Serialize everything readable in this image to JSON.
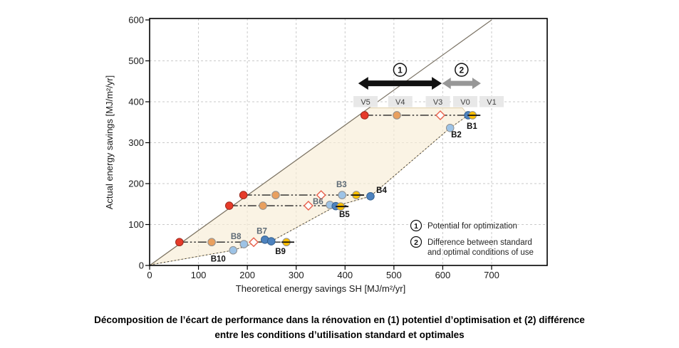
{
  "caption": {
    "lines": [
      "Décomposition de l’écart de performance dans la rénovation en (1) potentiel d’optimisation et (2) différence",
      "entre les conditions d’utilisation standard et optimales"
    ]
  },
  "chart_data": {
    "type": "scatter",
    "xlabel": "Theoretical energy savings SH [MJ/m²/yr]",
    "ylabel": "Actual energy savings [MJ/m²/yr]",
    "xlim": [
      0,
      700
    ],
    "ylim": [
      0,
      600
    ],
    "xticks": [
      0,
      100,
      200,
      300,
      400,
      500,
      600,
      700
    ],
    "yticks": [
      0,
      100,
      200,
      300,
      400,
      500,
      600
    ],
    "grid": true,
    "identity_line": {
      "from": [
        0,
        0
      ],
      "to": [
        700,
        600
      ]
    },
    "optimization_band": [
      [
        3,
        2
      ],
      [
        449,
        385
      ],
      [
        640,
        385
      ],
      [
        652,
        367
      ],
      [
        615,
        336
      ],
      [
        452,
        169
      ],
      [
        381,
        145
      ],
      [
        249,
        59
      ],
      [
        236,
        63
      ],
      [
        171,
        37
      ]
    ],
    "performance_path": [
      [
        652,
        367
      ],
      [
        615,
        336
      ],
      [
        452,
        169
      ],
      [
        381,
        145
      ],
      [
        249,
        59
      ],
      [
        236,
        63
      ],
      [
        171,
        37
      ],
      [
        3,
        2
      ]
    ],
    "series_rows": [
      {
        "y": 367,
        "line": [
          440,
          674
        ],
        "points": [
          [
            "red",
            440
          ],
          [
            "orange",
            506
          ],
          [
            "diamond",
            595
          ],
          [
            "blue",
            652
          ],
          [
            "yellow",
            661
          ]
        ]
      },
      {
        "y": 172,
        "line": [
          192,
          437
        ],
        "points": [
          [
            "red",
            192
          ],
          [
            "orange",
            258
          ],
          [
            "diamond",
            351
          ],
          [
            "lightblue",
            394
          ],
          [
            "yellow",
            423
          ]
        ]
      },
      {
        "y": 146,
        "line": [
          163,
          403
        ],
        "points": [
          [
            "red",
            163
          ],
          [
            "orange",
            232
          ],
          [
            "diamond",
            325
          ],
          [
            "lightblue",
            369,
            148
          ],
          [
            "blue",
            381,
            145
          ],
          [
            "yellow",
            391,
            144
          ]
        ]
      },
      {
        "y": 57,
        "line": [
          61,
          291
        ],
        "points": [
          [
            "red",
            61
          ],
          [
            "orange",
            127
          ],
          [
            "diamond",
            213
          ],
          [
            "blue",
            236,
            63
          ],
          [
            "blue",
            249,
            59
          ],
          [
            "yellow",
            280
          ]
        ]
      }
    ],
    "scatter_points": [
      [
        "lightblue",
        615,
        336
      ],
      [
        "blue",
        452,
        169
      ],
      [
        "lightblue",
        193,
        52
      ],
      [
        "lightblue",
        171,
        37
      ]
    ],
    "building_labels": [
      {
        "text": "B1",
        "x": 649,
        "y": 334,
        "shade": "black"
      },
      {
        "text": "B2",
        "x": 617,
        "y": 313,
        "shade": "black"
      },
      {
        "text": "B3",
        "x": 382,
        "y": 191,
        "shade": "gray"
      },
      {
        "text": "B4",
        "x": 464,
        "y": 177,
        "shade": "black"
      },
      {
        "text": "B5",
        "x": 388,
        "y": 118,
        "shade": "black"
      },
      {
        "text": "B6",
        "x": 334,
        "y": 150,
        "shade": "gray"
      },
      {
        "text": "B7",
        "x": 219,
        "y": 77,
        "shade": "gray"
      },
      {
        "text": "B8",
        "x": 166,
        "y": 64,
        "shade": "gray"
      },
      {
        "text": "B9",
        "x": 257,
        "y": 28,
        "shade": "black"
      },
      {
        "text": "B10",
        "x": 125,
        "y": 10,
        "shade": "black"
      }
    ],
    "version_labels": [
      {
        "text": "V5",
        "x": 442
      },
      {
        "text": "V4",
        "x": 513
      },
      {
        "text": "V3",
        "x": 590
      },
      {
        "text": "V0",
        "x": 646
      },
      {
        "text": "V1",
        "x": 700
      }
    ],
    "version_labels_y": 400,
    "arrows": [
      {
        "num": "1",
        "x1": 427,
        "x2": 598,
        "y": 445,
        "color": "#111111"
      },
      {
        "num": "2",
        "x1": 599,
        "x2": 678,
        "y": 445,
        "color": "#979797"
      }
    ],
    "legend": [
      {
        "num": "1",
        "lines": [
          "Potential for optimization"
        ]
      },
      {
        "num": "2",
        "lines": [
          "Difference between standard",
          "and optimal conditions of use"
        ]
      }
    ],
    "colors": {
      "red": "#e63b2a",
      "red_stroke": "#9c2a1e",
      "orange": "#e9a05f",
      "orange_stroke": "#8f8f8f",
      "yellow": "#ffc000",
      "yellow_stroke": "#8f8f8f",
      "blue": "#4d82be",
      "blue_stroke": "#35618f",
      "lightblue": "#9dc3e6",
      "lightblue_stroke": "#8f8f8f",
      "diamond_stroke": "#e8604c",
      "band_fill": "#f7ecd5",
      "band_stroke": "#dcc9a0",
      "grid": "#c9c9c9",
      "identity": "#7a7264",
      "dash_line": "#262626",
      "dotted": "#3a3a3a",
      "version_bg": "#e8e8e8",
      "version_text": "#3f3f3f",
      "label_black": "#111111",
      "label_gray": "#5d6a75"
    }
  }
}
